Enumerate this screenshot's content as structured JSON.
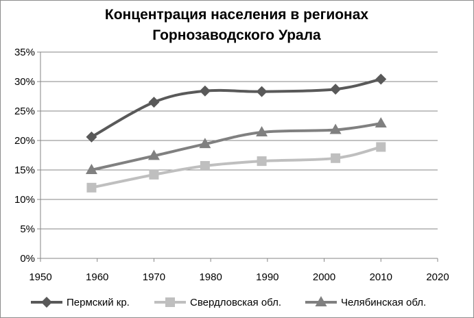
{
  "chart_data": {
    "type": "line",
    "title_lines": [
      "Концентрация населения в регионах",
      "Горнозаводского  Урала"
    ],
    "xlabel": "",
    "ylabel": "",
    "xlim": [
      1950,
      2020
    ],
    "ylim": [
      0,
      35
    ],
    "x_ticks": [
      1950,
      1960,
      1970,
      1980,
      1990,
      2000,
      2010,
      2020
    ],
    "x_tick_labels": [
      "1950",
      "1960",
      "1970",
      "1980",
      "1990",
      "2000",
      "2010",
      "2020"
    ],
    "y_ticks": [
      0,
      5,
      10,
      15,
      20,
      25,
      30,
      35
    ],
    "y_tick_labels": [
      "0%",
      "5%",
      "10%",
      "15%",
      "20%",
      "25%",
      "30%",
      "35%"
    ],
    "grid": "horizontal",
    "legend_position": "bottom",
    "x": [
      1959,
      1970,
      1979,
      1989,
      2002,
      2010
    ],
    "series": [
      {
        "name": "Пермский кр.",
        "marker": "diamond",
        "color": "#595959",
        "values": [
          20.6,
          26.5,
          28.4,
          28.3,
          28.7,
          30.4
        ]
      },
      {
        "name": "Свердловская обл.",
        "marker": "square",
        "color": "#bfbfbf",
        "values": [
          12.0,
          14.2,
          15.7,
          16.5,
          17.0,
          18.9
        ]
      },
      {
        "name": "Челябинская обл.",
        "marker": "triangle",
        "color": "#808080",
        "values": [
          15.0,
          17.4,
          19.4,
          21.4,
          21.8,
          22.9
        ]
      }
    ]
  }
}
